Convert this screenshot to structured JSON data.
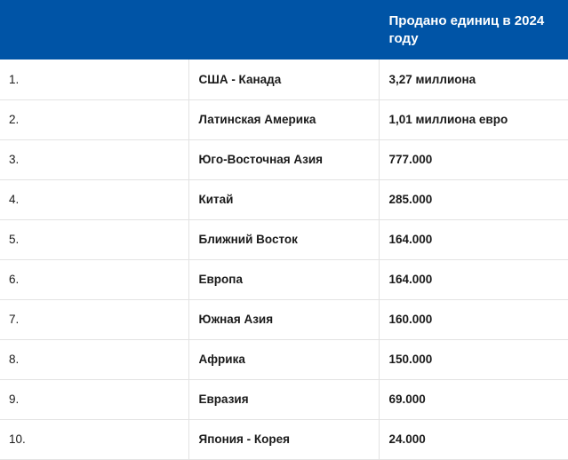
{
  "table": {
    "header": [
      "",
      "",
      "Продано единиц в 2024 году"
    ],
    "rows": [
      {
        "rank": "1.",
        "region": "США - Канада",
        "units": "3,27 миллиона"
      },
      {
        "rank": "2.",
        "region": "Латинская Америка",
        "units": "1,01 миллиона евро"
      },
      {
        "rank": "3.",
        "region": "Юго-Восточная Азия",
        "units": "777.000"
      },
      {
        "rank": "4.",
        "region": "Китай",
        "units": "285.000"
      },
      {
        "rank": "5.",
        "region": "Ближний Восток",
        "units": "164.000"
      },
      {
        "rank": "6.",
        "region": "Европа",
        "units": "164.000"
      },
      {
        "rank": "7.",
        "region": "Южная Азия",
        "units": "160.000"
      },
      {
        "rank": "8.",
        "region": "Африка",
        "units": "150.000"
      },
      {
        "rank": "9.",
        "region": "Евразия",
        "units": "69.000"
      },
      {
        "rank": "10.",
        "region": "Япония - Корея",
        "units": "24.000"
      }
    ]
  },
  "colors": {
    "header_background": "#0054a6",
    "header_text": "#ffffff",
    "row_border": "#e3e3e3"
  }
}
